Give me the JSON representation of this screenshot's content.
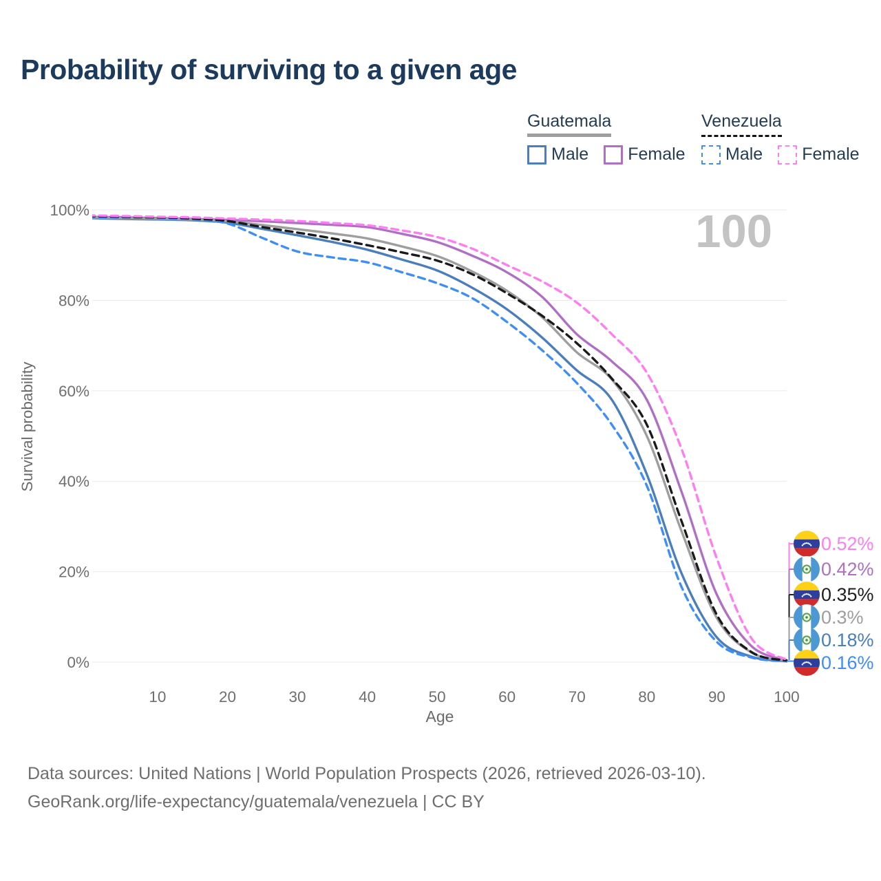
{
  "title": "Probability of surviving to a given age",
  "watermark": "100",
  "legend": {
    "groups": [
      {
        "country": "Guatemala",
        "line_style": "solid",
        "underline_color": "#9e9e9e",
        "items": [
          {
            "label": "Male",
            "color": "#4a7ebc",
            "dashed": false
          },
          {
            "label": "Female",
            "color": "#b06fc4",
            "dashed": false
          }
        ]
      },
      {
        "country": "Venezuela",
        "line_style": "dashed",
        "underline_color": "#141414",
        "items": [
          {
            "label": "Male",
            "color": "#3f8ef7",
            "dashed": true
          },
          {
            "label": "Female",
            "color": "#ff7df2",
            "dashed": true
          }
        ]
      }
    ]
  },
  "chart_data": {
    "type": "line",
    "title": "Probability of surviving to a given age",
    "xlabel": "Age",
    "ylabel": "Survival probability",
    "xlim": [
      0,
      100
    ],
    "ylim": [
      0,
      1
    ],
    "x_ticks": [
      10,
      20,
      30,
      40,
      50,
      60,
      70,
      80,
      90,
      100
    ],
    "y_ticks": [
      "0%",
      "20%",
      "40%",
      "60%",
      "80%",
      "100%"
    ],
    "grid": "horizontal",
    "legend_position": "top-right",
    "age_counter_watermark": "100",
    "x": [
      0,
      5,
      10,
      15,
      20,
      25,
      30,
      35,
      40,
      45,
      50,
      55,
      60,
      65,
      70,
      75,
      80,
      85,
      90,
      95,
      100
    ],
    "series": [
      {
        "name": "Guatemala Male",
        "color": "#4a7ebc",
        "dashed": false,
        "end_value_label": "0.18%",
        "values": [
          0.982,
          0.98,
          0.979,
          0.977,
          0.972,
          0.958,
          0.944,
          0.929,
          0.912,
          0.89,
          0.866,
          0.828,
          0.78,
          0.718,
          0.645,
          0.58,
          0.415,
          0.195,
          0.055,
          0.012,
          0.0018
        ]
      },
      {
        "name": "Guatemala Female",
        "color": "#b06fc4",
        "dashed": false,
        "end_value_label": "0.42%",
        "values": [
          0.985,
          0.9835,
          0.982,
          0.98,
          0.978,
          0.975,
          0.971,
          0.967,
          0.962,
          0.947,
          0.929,
          0.899,
          0.862,
          0.808,
          0.725,
          0.665,
          0.58,
          0.375,
          0.15,
          0.035,
          0.0042
        ]
      },
      {
        "name": "Guatemala Both sexes",
        "color": "#9e9e9e",
        "dashed": false,
        "end_value_label": "0.3%",
        "values": [
          0.9835,
          0.9818,
          0.9805,
          0.9785,
          0.975,
          0.9665,
          0.9575,
          0.948,
          0.937,
          0.919,
          0.898,
          0.864,
          0.821,
          0.763,
          0.685,
          0.625,
          0.5,
          0.288,
          0.098,
          0.021,
          0.003
        ]
      },
      {
        "name": "Venezuela Male",
        "color": "#3f8ef7",
        "dashed": true,
        "end_value_label": "0.16%",
        "values": [
          0.985,
          0.9832,
          0.982,
          0.979,
          0.97,
          0.938,
          0.908,
          0.895,
          0.884,
          0.862,
          0.838,
          0.805,
          0.752,
          0.69,
          0.617,
          0.525,
          0.39,
          0.165,
          0.045,
          0.01,
          0.0016
        ]
      },
      {
        "name": "Venezuela Both sexes",
        "color": "#1a1a1a",
        "dashed": true,
        "end_value_label": "0.35%",
        "values": [
          0.9865,
          0.9849,
          0.9835,
          0.981,
          0.9755,
          0.962,
          0.95,
          0.937,
          0.922,
          0.906,
          0.888,
          0.858,
          0.8155,
          0.766,
          0.705,
          0.627,
          0.525,
          0.31,
          0.105,
          0.022,
          0.0035
        ]
      },
      {
        "name": "Venezuela Female",
        "color": "#ff7df2",
        "dashed": true,
        "end_value_label": "0.52%",
        "values": [
          0.988,
          0.9865,
          0.985,
          0.9835,
          0.981,
          0.9785,
          0.9755,
          0.971,
          0.966,
          0.9545,
          0.94,
          0.9145,
          0.878,
          0.842,
          0.795,
          0.725,
          0.64,
          0.47,
          0.23,
          0.052,
          0.0052
        ]
      }
    ],
    "end_labels": [
      {
        "text": "0.52%",
        "color": "#ff7df2",
        "flag": "venezuela"
      },
      {
        "text": "0.42%",
        "color": "#b06fc4",
        "flag": "guatemala"
      },
      {
        "text": "0.35%",
        "color": "#1f1f1f",
        "flag": "venezuela"
      },
      {
        "text": "0.3%",
        "color": "#9e9e9e",
        "flag": "guatemala"
      },
      {
        "text": "0.18%",
        "color": "#4a7ebc",
        "flag": "guatemala"
      },
      {
        "text": "0.16%",
        "color": "#3f8ef7",
        "flag": "venezuela"
      }
    ]
  },
  "footer": {
    "line1": "Data sources: United Nations | World Population Prospects (2026, retrieved 2026-03-10).",
    "line2": "GeoRank.org/life-expectancy/guatemala/venezuela | CC BY"
  }
}
